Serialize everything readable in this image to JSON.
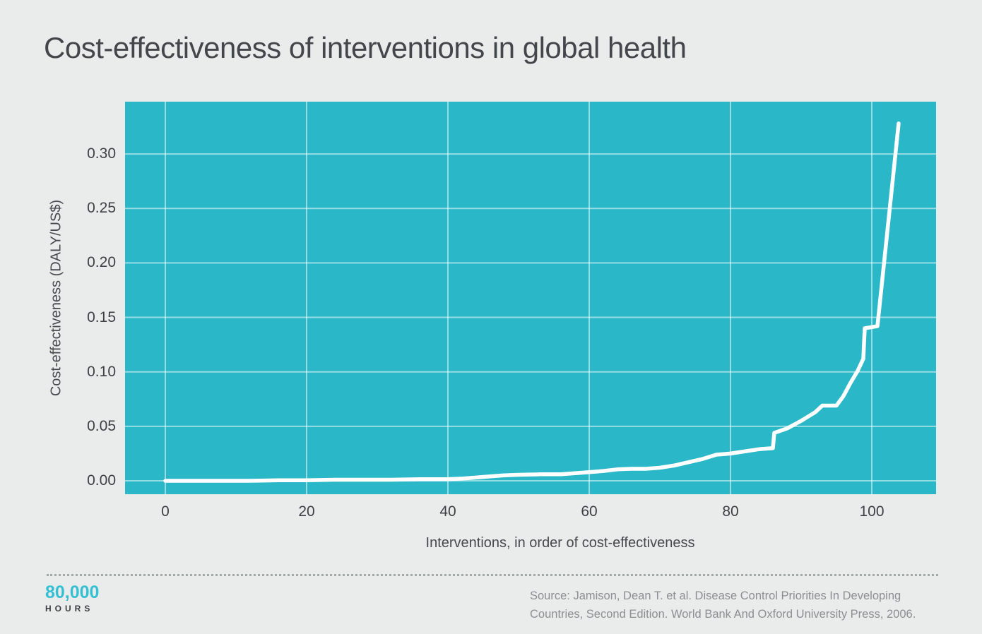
{
  "title": "Cost-effectiveness of interventions in global health",
  "colors": {
    "page_background": "#eaeceb",
    "plot_background": "#2ab8c8",
    "gridline": "rgba(255,255,255,0.5)",
    "data_line": "#ffffff",
    "title_text": "#43464a",
    "axis_text": "#3d4145",
    "source_text": "#8b8f92",
    "brand_teal": "#35bfd3",
    "brand_dark": "#3b3e40"
  },
  "chart_data": {
    "type": "line",
    "title": "Cost-effectiveness of interventions in global health",
    "xlabel": "Interventions, in order of cost-effectiveness",
    "ylabel": "Cost-effectiveness (DALY/US$)",
    "xlim": [
      -5.7,
      109.1
    ],
    "ylim": [
      -0.0123,
      0.348
    ],
    "grid": true,
    "legend": false,
    "x_ticks": [
      {
        "value": 0,
        "label": "0"
      },
      {
        "value": 20,
        "label": "20"
      },
      {
        "value": 40,
        "label": "40"
      },
      {
        "value": 60,
        "label": "60"
      },
      {
        "value": 80,
        "label": "80"
      },
      {
        "value": 100,
        "label": "100"
      }
    ],
    "y_ticks": [
      {
        "value": 0.0,
        "label": "0.00"
      },
      {
        "value": 0.05,
        "label": "0.05"
      },
      {
        "value": 0.1,
        "label": "0.10"
      },
      {
        "value": 0.15,
        "label": "0.15"
      },
      {
        "value": 0.2,
        "label": "0.20"
      },
      {
        "value": 0.25,
        "label": "0.25"
      },
      {
        "value": 0.3,
        "label": "0.30"
      }
    ],
    "series": [
      {
        "name": "Cost-effectiveness (DALY/US$) by intervention rank",
        "points": [
          [
            0,
            0.0
          ],
          [
            4,
            0.0
          ],
          [
            8,
            0.0
          ],
          [
            12,
            0.0
          ],
          [
            16,
            0.0005
          ],
          [
            20,
            0.0005
          ],
          [
            24,
            0.001
          ],
          [
            28,
            0.001
          ],
          [
            32,
            0.001
          ],
          [
            36,
            0.0015
          ],
          [
            40,
            0.0015
          ],
          [
            42,
            0.002
          ],
          [
            44,
            0.003
          ],
          [
            46,
            0.004
          ],
          [
            48,
            0.005
          ],
          [
            50,
            0.0055
          ],
          [
            53,
            0.006
          ],
          [
            56,
            0.006
          ],
          [
            58,
            0.007
          ],
          [
            60,
            0.008
          ],
          [
            62,
            0.009
          ],
          [
            64,
            0.0105
          ],
          [
            66,
            0.011
          ],
          [
            68,
            0.011
          ],
          [
            70,
            0.012
          ],
          [
            72,
            0.014
          ],
          [
            74,
            0.017
          ],
          [
            76,
            0.02
          ],
          [
            78,
            0.024
          ],
          [
            80,
            0.025
          ],
          [
            81,
            0.026
          ],
          [
            84,
            0.029
          ],
          [
            86,
            0.03
          ],
          [
            86.2,
            0.044
          ],
          [
            88,
            0.048
          ],
          [
            90,
            0.055
          ],
          [
            92,
            0.063
          ],
          [
            93,
            0.069
          ],
          [
            95,
            0.069
          ],
          [
            96,
            0.078
          ],
          [
            97,
            0.09
          ],
          [
            98,
            0.101
          ],
          [
            98.8,
            0.112
          ],
          [
            99,
            0.14
          ],
          [
            100.8,
            0.142
          ],
          [
            103.8,
            0.328
          ]
        ]
      }
    ]
  },
  "footer": {
    "brand_top": "80,000",
    "brand_bottom": "HOURS",
    "source_line1": "Source: Jamison, Dean T. et al. Disease Control Priorities In Developing",
    "source_line2": "Countries, Second Edition. World Bank And Oxford University Press, 2006."
  }
}
